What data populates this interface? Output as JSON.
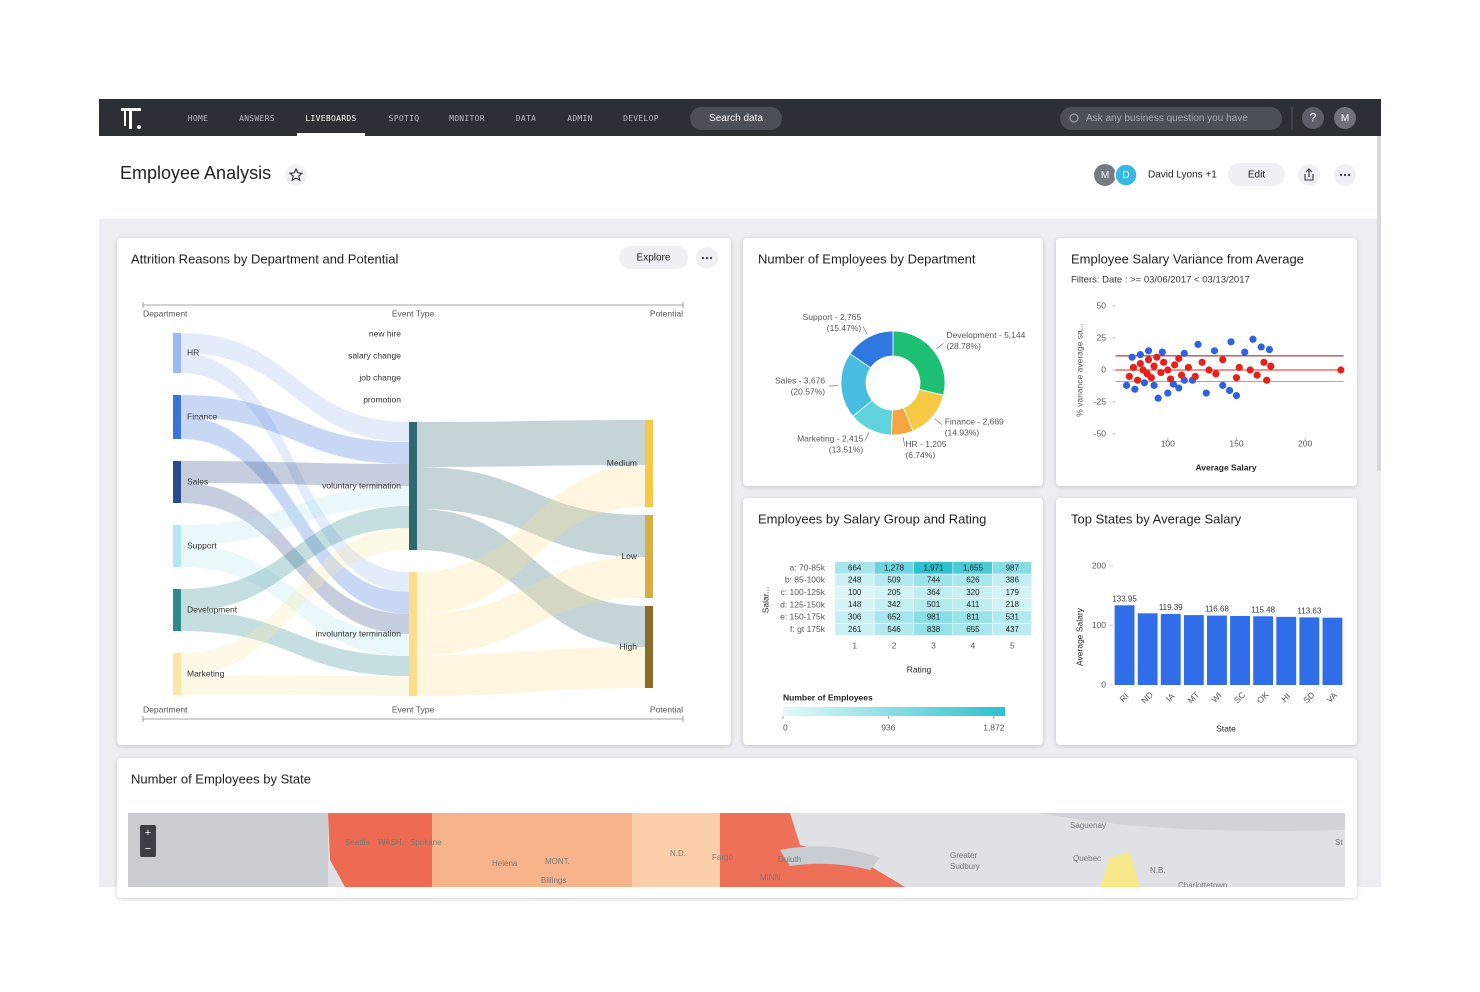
{
  "nav": {
    "items": [
      {
        "label": "HOME"
      },
      {
        "label": "ANSWERS"
      },
      {
        "label": "LIVEBOARDS",
        "active": true
      },
      {
        "label": "SPOTIQ"
      },
      {
        "label": "MONITOR"
      },
      {
        "label": "DATA"
      },
      {
        "label": "ADMIN"
      },
      {
        "label": "DEVELOP"
      }
    ],
    "search_button": "Search data",
    "search_placeholder": "Ask any business question you have",
    "help": "?",
    "user": "M"
  },
  "header": {
    "title": "Employee Analysis",
    "avatars": [
      "M",
      "D"
    ],
    "owners": "David Lyons +1",
    "edit": "Edit"
  },
  "chart_data": [
    {
      "type": "sankey",
      "title": "Attrition Reasons by Department and Potential",
      "explore": "Explore",
      "columns": [
        {
          "label": "Department",
          "nodes": [
            {
              "name": "HR",
              "color": "#9db9f2"
            },
            {
              "name": "Finance",
              "color": "#3b74d9"
            },
            {
              "name": "Sales",
              "color": "#2d4a8a"
            },
            {
              "name": "Support",
              "color": "#b4e6f2"
            },
            {
              "name": "Development",
              "color": "#2f8a8c"
            },
            {
              "name": "Marketing",
              "color": "#fbe6a8"
            }
          ]
        },
        {
          "label": "Event Type",
          "nodes": [
            {
              "name": "new hire"
            },
            {
              "name": "salary change"
            },
            {
              "name": "job change"
            },
            {
              "name": "promotion"
            },
            {
              "name": "voluntary termination",
              "color": "#2f6970"
            },
            {
              "name": "involuntary termination",
              "color": "#fbdd8c"
            }
          ]
        },
        {
          "label": "Potential",
          "nodes": [
            {
              "name": "Medium",
              "color": "#f5c84a"
            },
            {
              "name": "Low",
              "color": "#d6ae45"
            },
            {
              "name": "High",
              "color": "#8a6b2a"
            }
          ]
        }
      ],
      "links": [
        {
          "source": [
            0,
            0
          ],
          "target": [
            1,
            4
          ],
          "value": 20
        },
        {
          "source": [
            0,
            0
          ],
          "target": [
            1,
            5
          ],
          "value": 20
        },
        {
          "source": [
            0,
            1
          ],
          "target": [
            1,
            4
          ],
          "value": 22
        },
        {
          "source": [
            0,
            1
          ],
          "target": [
            1,
            5
          ],
          "value": 22
        },
        {
          "source": [
            0,
            2
          ],
          "target": [
            1,
            4
          ],
          "value": 22
        },
        {
          "source": [
            0,
            2
          ],
          "target": [
            1,
            5
          ],
          "value": 20
        },
        {
          "source": [
            0,
            3
          ],
          "target": [
            1,
            4
          ],
          "value": 20
        },
        {
          "source": [
            0,
            3
          ],
          "target": [
            1,
            5
          ],
          "value": 22
        },
        {
          "source": [
            0,
            4
          ],
          "target": [
            1,
            4
          ],
          "value": 22
        },
        {
          "source": [
            0,
            4
          ],
          "target": [
            1,
            5
          ],
          "value": 20
        },
        {
          "source": [
            0,
            5
          ],
          "target": [
            1,
            4
          ],
          "value": 22
        },
        {
          "source": [
            0,
            5
          ],
          "target": [
            1,
            5
          ],
          "value": 20
        },
        {
          "source": [
            1,
            4
          ],
          "target": [
            2,
            0
          ],
          "value": 45
        },
        {
          "source": [
            1,
            4
          ],
          "target": [
            2,
            1
          ],
          "value": 42
        },
        {
          "source": [
            1,
            4
          ],
          "target": [
            2,
            2
          ],
          "value": 41
        },
        {
          "source": [
            1,
            5
          ],
          "target": [
            2,
            0
          ],
          "value": 42
        },
        {
          "source": [
            1,
            5
          ],
          "target": [
            2,
            1
          ],
          "value": 41
        },
        {
          "source": [
            1,
            5
          ],
          "target": [
            2,
            2
          ],
          "value": 41
        }
      ]
    },
    {
      "type": "donut",
      "title": "Number of Employees by Department",
      "values": [
        5144,
        2669,
        1205,
        2415,
        3676,
        2765
      ],
      "value_labels": [
        "Development - 5,144",
        "Finance - 2,669",
        "HR - 1,205",
        "Marketing - 2,415",
        "Sales - 3,676",
        "Support - 2,765"
      ],
      "percent_labels": [
        "(28.78%)",
        "(14.93%)",
        "(6.74%)",
        "(13.51%)",
        "(20.57%)",
        "(15.47%)"
      ],
      "colors": [
        "#1dbf73",
        "#f6c945",
        "#f3a53f",
        "#5ed3dc",
        "#47bde0",
        "#2f78e0"
      ]
    },
    {
      "type": "scatter",
      "title": "Employee Salary Variance from Average",
      "subtitle": "Filters: Date : >= 03/06/2017 < 03/13/2017",
      "x_label": "Average Salary",
      "y_label": "% variance average sa...",
      "xlim": [
        62,
        228
      ],
      "xticks": [
        100,
        150,
        200
      ],
      "ylim": [
        -55,
        55
      ],
      "yticks": [
        -50,
        -25,
        0,
        25,
        50
      ],
      "reference_lines": [
        {
          "value": 11,
          "color": "#a30d0d"
        },
        {
          "value": 0,
          "color": "#e02a22"
        },
        {
          "value": -9,
          "color": "#ef8a80"
        }
      ],
      "series": [
        {
          "color": "#2f62e0",
          "x": [
            70,
            74,
            76,
            80,
            83,
            86,
            90,
            93,
            96,
            100,
            104,
            108,
            112,
            118,
            122,
            128,
            134,
            140,
            146,
            150,
            156,
            162,
            168,
            174,
            112,
            145
          ],
          "values": [
            -12,
            10,
            -15,
            12,
            -10,
            15,
            -12,
            -22,
            14,
            -18,
            -11,
            -14,
            13,
            -8,
            20,
            -18,
            15,
            -12,
            22,
            -20,
            14,
            24,
            18,
            16,
            -8,
            -16
          ]
        },
        {
          "color": "#e8201c",
          "x": [
            72,
            75,
            78,
            80,
            82,
            85,
            86,
            88,
            90,
            92,
            95,
            97,
            100,
            102,
            105,
            108,
            110,
            115,
            120,
            125,
            130,
            135,
            140,
            150,
            152,
            160,
            165,
            170,
            172,
            175,
            226
          ],
          "values": [
            -5,
            2,
            -8,
            5,
            0,
            -3,
            8,
            -6,
            3,
            10,
            -2,
            6,
            0,
            -7,
            4,
            9,
            -4,
            2,
            -5,
            6,
            0,
            -3,
            8,
            -6,
            2,
            0,
            -4,
            6,
            -8,
            3,
            0
          ]
        }
      ]
    },
    {
      "type": "heatmap",
      "title": "Employees by Salary Group and Rating",
      "x_label": "Rating",
      "y_label": "Salar...",
      "rows": [
        "a: 70-85k",
        "b: 85-100k",
        "c: 100-125k",
        "d: 125-150k",
        "e: 150-175k",
        "f: gt 175k"
      ],
      "columns": [
        1,
        2,
        3,
        4,
        5
      ],
      "values": [
        [
          664,
          1278,
          1971,
          1655,
          987
        ],
        [
          248,
          509,
          744,
          626,
          386
        ],
        [
          100,
          205,
          364,
          320,
          179
        ],
        [
          148,
          342,
          501,
          411,
          218
        ],
        [
          306,
          652,
          981,
          811,
          531
        ],
        [
          261,
          546,
          838,
          655,
          437
        ]
      ],
      "value_labels": [
        [
          "664",
          "1,278",
          "1,971",
          "1,655",
          "987"
        ],
        [
          "248",
          "509",
          "744",
          "626",
          "386"
        ],
        [
          "100",
          "205",
          "364",
          "320",
          "179"
        ],
        [
          "148",
          "342",
          "501",
          "411",
          "218"
        ],
        [
          "306",
          "652",
          "981",
          "811",
          "531"
        ],
        [
          "261",
          "546",
          "838",
          "655",
          "437"
        ]
      ],
      "legend_title": "Number of Employees",
      "clim": [
        0,
        1971
      ],
      "legend_ticks": [
        0,
        936,
        {
          "value": 1872,
          "label": "1,872"
        }
      ],
      "colors": [
        "#e3f9fb",
        "#2ec0cd"
      ]
    },
    {
      "type": "bar",
      "title": "Top States by Average Salary",
      "x_label": "State",
      "y_label": "Average Salary",
      "categories": [
        "RI",
        "ND",
        "IA",
        "MT",
        "WI",
        "SC",
        "OK",
        "HI",
        "SD",
        "VA"
      ],
      "values": [
        133.95,
        120.5,
        119.39,
        117.5,
        116.68,
        116,
        115.48,
        114.5,
        113.63,
        113.2
      ],
      "label_every": 2,
      "ylim": [
        0,
        200
      ],
      "yticks": [
        0,
        100,
        200
      ],
      "color": "#2f6ee8"
    },
    {
      "type": "map",
      "title": "Number of Employees by State",
      "zoom": [
        "+",
        "−"
      ],
      "labels": [
        "Seattle",
        "WASH.",
        "Spokane",
        "Helena",
        "MONT.",
        "Billings",
        "N.D.",
        "Fargo",
        "Duluth",
        "MINN.",
        "Greater",
        "Sudbury",
        "Saguenay",
        "Quebec",
        "N.B.",
        "Charlottetown",
        "St"
      ]
    }
  ]
}
